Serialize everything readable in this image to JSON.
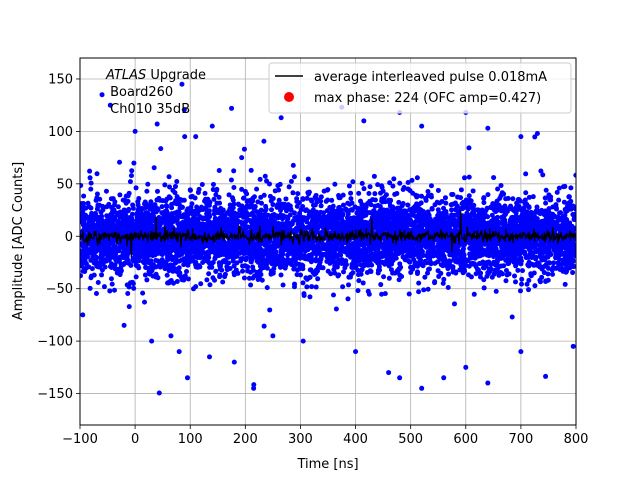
{
  "chart_data": {
    "type": "scatter",
    "title": "",
    "xlabel": "Time [ns]",
    "ylabel": "Amplitude [ADC Counts]",
    "xlim": [
      -100,
      800
    ],
    "ylim": [
      -180,
      170
    ],
    "xticks": [
      -100,
      0,
      100,
      200,
      300,
      400,
      500,
      600,
      700,
      800
    ],
    "yticks": [
      -150,
      -100,
      -50,
      0,
      50,
      100,
      150
    ],
    "grid": true,
    "legend_position": "top-right",
    "annotation": {
      "line1_italic": "ATLAS",
      "line1_rest": " Upgrade",
      "line2": " Board260",
      "line3": " Ch010 35dB"
    },
    "series": [
      {
        "name": "average interleaved pulse 0.018mA",
        "kind": "line",
        "color": "#000000",
        "x_range": [
          -100,
          800
        ],
        "mean": 0,
        "noise_std": 3,
        "n_points": 900
      },
      {
        "name": "max phase: 224 (OFC amp=0.427)",
        "kind": "marker",
        "color": "#ff0000",
        "points": []
      },
      {
        "name": "",
        "kind": "scatter",
        "color": "#0000ff",
        "x_range": [
          -100,
          800
        ],
        "center": 0,
        "core_std": 18,
        "n_points": 6000,
        "outliers": [
          [
            -60,
            135
          ],
          [
            -45,
            125
          ],
          [
            85,
            145
          ],
          [
            90,
            95
          ],
          [
            140,
            105
          ],
          [
            175,
            122
          ],
          [
            265,
            113
          ],
          [
            375,
            123
          ],
          [
            415,
            110
          ],
          [
            480,
            118
          ],
          [
            520,
            105
          ],
          [
            600,
            118
          ],
          [
            640,
            103
          ],
          [
            700,
            95
          ],
          [
            730,
            98
          ],
          [
            0,
            100
          ],
          [
            40,
            107
          ],
          [
            110,
            95
          ],
          [
            -95,
            -75
          ],
          [
            -20,
            -85
          ],
          [
            80,
            -110
          ],
          [
            95,
            -135
          ],
          [
            135,
            -115
          ],
          [
            180,
            -120
          ],
          [
            215,
            -145
          ],
          [
            305,
            -100
          ],
          [
            400,
            -110
          ],
          [
            460,
            -130
          ],
          [
            480,
            -135
          ],
          [
            520,
            -145
          ],
          [
            560,
            -135
          ],
          [
            600,
            -125
          ],
          [
            640,
            -140
          ],
          [
            700,
            -110
          ],
          [
            795,
            -105
          ],
          [
            30,
            -100
          ],
          [
            65,
            -95
          ],
          [
            250,
            -95
          ]
        ]
      }
    ]
  }
}
